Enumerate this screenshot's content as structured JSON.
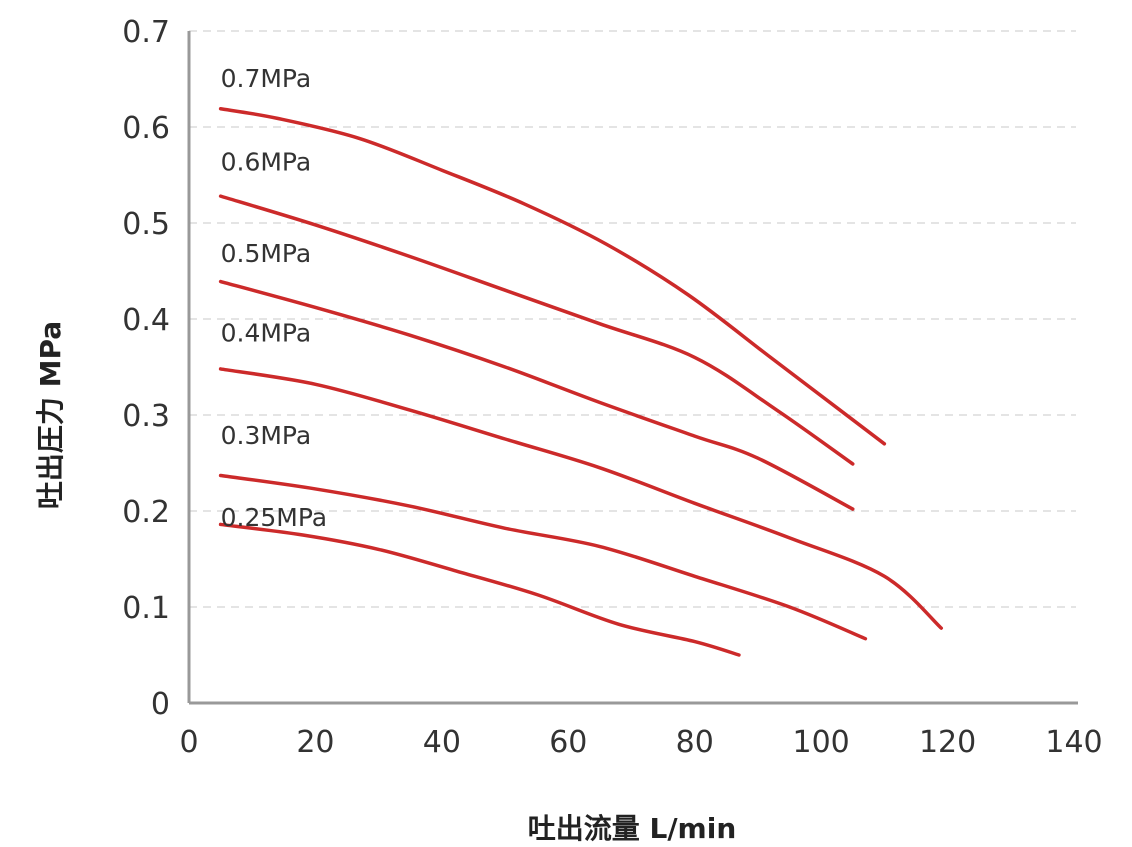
{
  "chart_data": {
    "type": "line",
    "title": "",
    "xlabel": "吐出流量 L/min",
    "ylabel": "吐出圧力 MPa",
    "xlim": [
      0,
      140
    ],
    "ylim": [
      0,
      0.7
    ],
    "x_ticks": [
      "0",
      "20",
      "40",
      "60",
      "80",
      "100",
      "120",
      "140"
    ],
    "y_ticks": [
      "0",
      "0.1",
      "0.2",
      "0.3",
      "0.4",
      "0.5",
      "0.6",
      "0.7"
    ],
    "x_tick_values": [
      0,
      20,
      40,
      60,
      80,
      100,
      120,
      140
    ],
    "y_tick_values": [
      0,
      0.1,
      0.2,
      0.3,
      0.4,
      0.5,
      0.6,
      0.7
    ],
    "grid": "horizontal dashed",
    "line_color": "#cc2a2a",
    "series": [
      {
        "name": "0.7MPa",
        "points": [
          [
            5,
            0.619
          ],
          [
            14,
            0.609
          ],
          [
            27,
            0.588
          ],
          [
            40,
            0.555
          ],
          [
            53,
            0.52
          ],
          [
            66,
            0.478
          ],
          [
            79,
            0.425
          ],
          [
            92,
            0.36
          ],
          [
            103,
            0.305
          ],
          [
            110,
            0.27
          ]
        ]
      },
      {
        "name": "0.6MPa",
        "points": [
          [
            5,
            0.528
          ],
          [
            20,
            0.498
          ],
          [
            35,
            0.465
          ],
          [
            50,
            0.43
          ],
          [
            65,
            0.395
          ],
          [
            80,
            0.36
          ],
          [
            93,
            0.305
          ],
          [
            105,
            0.249
          ]
        ]
      },
      {
        "name": "0.5MPa",
        "points": [
          [
            5,
            0.439
          ],
          [
            20,
            0.412
          ],
          [
            35,
            0.383
          ],
          [
            50,
            0.35
          ],
          [
            65,
            0.313
          ],
          [
            80,
            0.278
          ],
          [
            90,
            0.255
          ],
          [
            105,
            0.202
          ]
        ]
      },
      {
        "name": "0.4MPa",
        "points": [
          [
            5,
            0.348
          ],
          [
            20,
            0.332
          ],
          [
            35,
            0.305
          ],
          [
            50,
            0.275
          ],
          [
            65,
            0.245
          ],
          [
            80,
            0.208
          ],
          [
            95,
            0.172
          ],
          [
            110,
            0.132
          ],
          [
            119,
            0.078
          ]
        ]
      },
      {
        "name": "0.3MPa",
        "points": [
          [
            5,
            0.237
          ],
          [
            20,
            0.223
          ],
          [
            35,
            0.205
          ],
          [
            50,
            0.182
          ],
          [
            65,
            0.163
          ],
          [
            80,
            0.132
          ],
          [
            95,
            0.1
          ],
          [
            107,
            0.067
          ]
        ]
      },
      {
        "name": "0.25MPa",
        "points": [
          [
            5,
            0.186
          ],
          [
            18,
            0.175
          ],
          [
            30,
            0.16
          ],
          [
            42,
            0.138
          ],
          [
            55,
            0.113
          ],
          [
            68,
            0.082
          ],
          [
            80,
            0.064
          ],
          [
            87,
            0.05
          ]
        ]
      }
    ],
    "series_label_positions": [
      {
        "name": "0.7MPa",
        "x": 5,
        "y": 0.651
      },
      {
        "name": "0.6MPa",
        "x": 5,
        "y": 0.564
      },
      {
        "name": "0.5MPa",
        "x": 5,
        "y": 0.469
      },
      {
        "name": "0.4MPa",
        "x": 5,
        "y": 0.386
      },
      {
        "name": "0.3MPa",
        "x": 5,
        "y": 0.279
      },
      {
        "name": "0.25MPa",
        "x": 5,
        "y": 0.194
      }
    ]
  }
}
